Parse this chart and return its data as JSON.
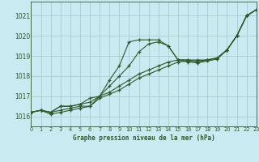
{
  "title": "Graphe pression niveau de la mer (hPa)",
  "bg_color": "#c8eaf0",
  "plot_bg_color": "#c8eaf0",
  "grid_color": "#aacccc",
  "line_color": "#2d5a2d",
  "xlim": [
    0,
    23
  ],
  "ylim": [
    1015.5,
    1021.7
  ],
  "yticks": [
    1016,
    1017,
    1018,
    1019,
    1020,
    1021
  ],
  "xticks": [
    0,
    1,
    2,
    3,
    4,
    5,
    6,
    7,
    8,
    9,
    10,
    11,
    12,
    13,
    14,
    15,
    16,
    17,
    18,
    19,
    20,
    21,
    22,
    23
  ],
  "series": [
    {
      "x": [
        0,
        1,
        2,
        3,
        4,
        5,
        6,
        7,
        8,
        9,
        10,
        11,
        12,
        13,
        14,
        15,
        16,
        17,
        18,
        19,
        20,
        21,
        22,
        23
      ],
      "y": [
        1016.2,
        1016.3,
        1016.2,
        1016.5,
        1016.5,
        1016.6,
        1016.9,
        1017.0,
        1017.8,
        1018.5,
        1019.7,
        1019.8,
        1019.8,
        1019.8,
        1019.5,
        1018.8,
        1018.8,
        1018.7,
        1018.8,
        1018.9,
        1019.3,
        1020.0,
        1021.0,
        1021.3
      ]
    },
    {
      "x": [
        0,
        1,
        2,
        3,
        4,
        5,
        6,
        7,
        8,
        9,
        10,
        11,
        12,
        13,
        14,
        15,
        16,
        17,
        18,
        19,
        20,
        21,
        22,
        23
      ],
      "y": [
        1016.2,
        1016.3,
        1016.2,
        1016.5,
        1016.5,
        1016.6,
        1016.7,
        1017.0,
        1017.5,
        1018.0,
        1018.5,
        1019.2,
        1019.6,
        1019.7,
        1019.5,
        1018.8,
        1018.7,
        1018.65,
        1018.75,
        1018.85,
        1019.3,
        1020.0,
        1021.0,
        1021.3
      ]
    },
    {
      "x": [
        0,
        1,
        2,
        3,
        4,
        5,
        6,
        7,
        8,
        9,
        10,
        11,
        12,
        13,
        14,
        15,
        16,
        17,
        18,
        19,
        20,
        21,
        22,
        23
      ],
      "y": [
        1016.2,
        1016.3,
        1016.2,
        1016.3,
        1016.4,
        1016.5,
        1016.5,
        1017.0,
        1017.2,
        1017.5,
        1017.8,
        1018.1,
        1018.3,
        1018.5,
        1018.7,
        1018.8,
        1018.8,
        1018.8,
        1018.8,
        1018.9,
        1019.3,
        1020.0,
        1021.0,
        1021.3
      ]
    },
    {
      "x": [
        0,
        1,
        2,
        3,
        4,
        5,
        6,
        7,
        8,
        9,
        10,
        11,
        12,
        13,
        14,
        15,
        16,
        17,
        18,
        19,
        20,
        21,
        22,
        23
      ],
      "y": [
        1016.2,
        1016.3,
        1016.1,
        1016.2,
        1016.3,
        1016.4,
        1016.5,
        1016.9,
        1017.1,
        1017.3,
        1017.6,
        1017.9,
        1018.1,
        1018.3,
        1018.5,
        1018.7,
        1018.75,
        1018.75,
        1018.8,
        1018.9,
        1019.3,
        1020.0,
        1021.0,
        1021.3
      ]
    }
  ]
}
